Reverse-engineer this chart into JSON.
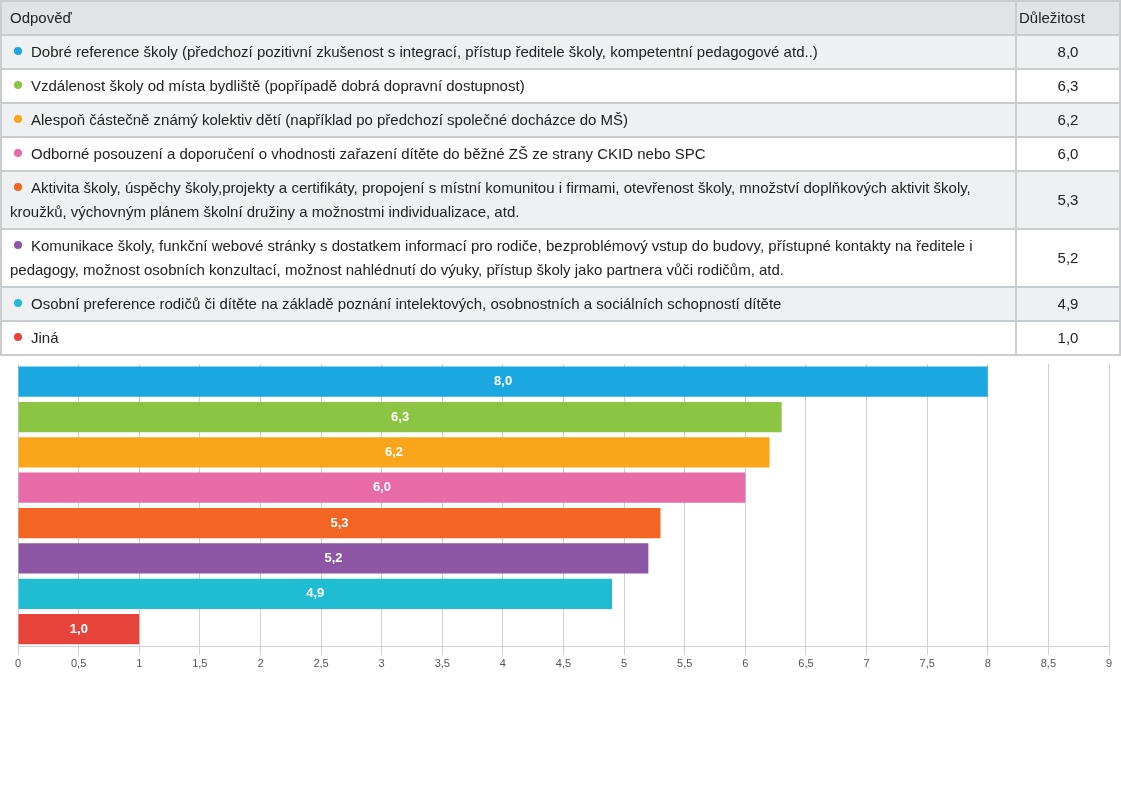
{
  "chart_data": {
    "type": "bar",
    "orientation": "horizontal",
    "stacked": true,
    "legend_title": "Odpověď",
    "annotations": [
      "Důležitost"
    ],
    "legend": "top",
    "tick_labels": "x",
    "grid": "x",
    "categories": [
      null,
      null,
      null,
      null,
      null,
      null,
      null,
      null
    ],
    "series": [
      {
        "name": "Dobré reference školy (předchozí pozitivní zkušenost s integrací, přístup ředitele školy, kompetentní pedagogové atd..)",
        "color": "#1ba7e0",
        "values": [
          8.0,
          null,
          null,
          null,
          null,
          null,
          null,
          null
        ],
        "value_labels": [
          "8,0",
          null,
          null,
          null,
          null,
          null,
          null,
          null
        ]
      },
      {
        "name": "Vzdálenost školy od místa bydliště (popřípadě dobrá dopravní dostupnost)",
        "color": "#8cc443",
        "values": [
          null,
          6.3,
          null,
          null,
          null,
          null,
          null,
          null
        ],
        "value_labels": [
          null,
          "6,3",
          null,
          null,
          null,
          null,
          null,
          null
        ]
      },
      {
        "name": "Alespoň částečně známý kolektiv dětí (například po předchozí společné docházce do MŠ)",
        "color": "#f9a61a",
        "values": [
          null,
          null,
          6.2,
          null,
          null,
          null,
          null,
          null
        ],
        "value_labels": [
          null,
          null,
          "6,2",
          null,
          null,
          null,
          null,
          null
        ]
      },
      {
        "name": "Odborné posouzení a doporučení o vhodnosti zařazení dítěte do běžné ZŠ ze strany CKID nebo SPC",
        "color": "#e86aa6",
        "values": [
          null,
          null,
          null,
          6.0,
          null,
          null,
          null,
          null
        ],
        "value_labels": [
          null,
          null,
          null,
          "6,0",
          null,
          null,
          null,
          null
        ]
      },
      {
        "name": "Aktivita školy, úspěchy školy,projekty a certifikáty, propojení s místní komunitou i firmami, otevřenost školy, množství doplňkových aktivit školy, kroužků, výchovným plánem školní družiny a možnostmi individualizace, atd.",
        "color": "#f26522",
        "values": [
          null,
          null,
          null,
          null,
          5.3,
          null,
          null,
          null
        ],
        "value_labels": [
          null,
          null,
          null,
          null,
          "5,3",
          null,
          null,
          null
        ]
      },
      {
        "name": "Komunikace školy, funkční webové stránky s dostatkem informací pro rodiče, bezproblémový vstup do budovy, přístupné kontakty na ředitele i pedagogy, možnost osobních konzultací, možnost nahlédnutí do výuky, přístup školy jako partnera vůči rodičům, atd.",
        "color": "#8c56a5",
        "values": [
          null,
          null,
          null,
          null,
          null,
          5.2,
          null,
          null
        ],
        "value_labels": [
          null,
          null,
          null,
          null,
          null,
          "5,2",
          null,
          null
        ]
      },
      {
        "name": "Osobní preference rodičů či dítěte na základě poznání intelektových, osobnostních a sociálních schopností dítěte",
        "color": "#1fbcd2",
        "values": [
          null,
          null,
          null,
          null,
          null,
          null,
          4.9,
          null
        ],
        "value_labels": [
          null,
          null,
          null,
          null,
          null,
          null,
          "4,9",
          null
        ]
      },
      {
        "name": "Jiná",
        "color": "#e8433a",
        "values": [
          null,
          null,
          null,
          null,
          null,
          null,
          null,
          1.0
        ],
        "value_labels": [
          null,
          null,
          null,
          null,
          null,
          null,
          null,
          "1,0"
        ]
      }
    ],
    "xlim": [
      0,
      9
    ],
    "xticks": [
      0,
      {
        "value": 0.5,
        "label": "0,5"
      },
      1,
      {
        "value": 1.5,
        "label": "1,5"
      },
      2,
      {
        "value": 2.5,
        "label": "2,5"
      },
      3,
      {
        "value": 3.5,
        "label": "3,5"
      },
      4,
      {
        "value": 4.5,
        "label": "4,5"
      },
      5,
      {
        "value": 5.5,
        "label": "5,5"
      },
      6,
      {
        "value": 6.5,
        "label": "6,5"
      },
      7,
      {
        "value": 7.5,
        "label": "7,5"
      },
      8,
      {
        "value": 8.5,
        "label": "8,5"
      },
      9
    ]
  }
}
